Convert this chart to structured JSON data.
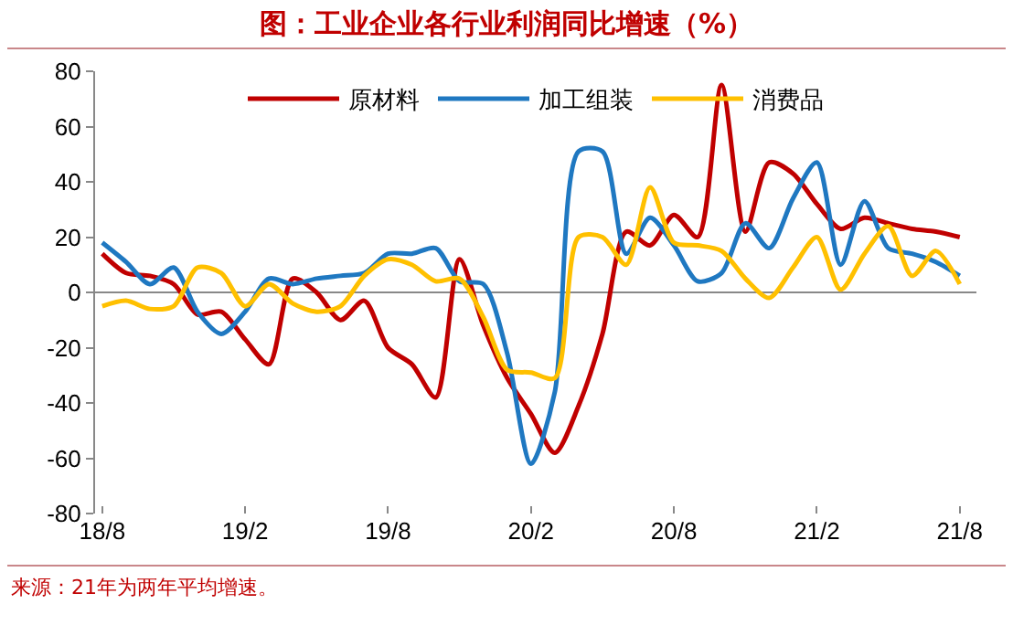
{
  "chart_data": {
    "type": "line",
    "title": "图：工业企业各行业利润同比增速（%）",
    "categories": [
      "18/8",
      null,
      null,
      null,
      null,
      null,
      "19/2",
      null,
      null,
      null,
      null,
      null,
      "19/8",
      null,
      null,
      null,
      null,
      null,
      "20/2",
      null,
      null,
      null,
      null,
      null,
      "20/8",
      null,
      null,
      null,
      null,
      null,
      "21/2",
      null,
      null,
      null,
      null,
      null,
      "21/8"
    ],
    "series": [
      {
        "name": "原材料",
        "color": "#c00000",
        "values": [
          14,
          7,
          6,
          3,
          -8,
          -7,
          -17,
          -26,
          5,
          0,
          -10,
          -3,
          -20,
          -26,
          -38,
          12,
          -12,
          -31,
          -44,
          -58,
          -41,
          -15,
          22,
          17,
          28,
          20,
          75,
          22,
          47,
          43,
          32,
          23,
          27,
          25,
          23,
          22,
          20
        ]
      },
      {
        "name": "加工组装",
        "color": "#1f78c1",
        "values": [
          18,
          11,
          3,
          9,
          -7,
          -15,
          -7,
          5,
          3,
          5,
          6,
          7,
          14,
          14,
          16,
          4,
          3,
          -22,
          -62,
          -36,
          51,
          51,
          14,
          27,
          17,
          4,
          7,
          25,
          16,
          34,
          47,
          10,
          33,
          16,
          14,
          11,
          6
        ]
      },
      {
        "name": "消费品",
        "color": "#ffc000",
        "values": [
          -5,
          -3,
          -6,
          -5,
          9,
          7,
          -5,
          3,
          -4,
          -7,
          -5,
          6,
          12,
          10,
          4,
          5,
          -9,
          -28,
          -29,
          -31,
          20,
          20,
          10,
          38,
          18,
          17,
          15,
          5,
          -2,
          9,
          20,
          1,
          14,
          24,
          6,
          15,
          3
        ]
      }
    ],
    "ylim": [
      -80,
      80
    ],
    "yticks": [
      -80,
      -60,
      -40,
      -20,
      0,
      20,
      40,
      60,
      80
    ],
    "ref_lines": [
      {
        "axis": "y",
        "value": 0,
        "color": "#888888"
      }
    ],
    "grid": false,
    "legend": "top",
    "marker": "none",
    "line_style": "solid",
    "annotations": [
      "来源：21年为两年平均增速。"
    ]
  }
}
